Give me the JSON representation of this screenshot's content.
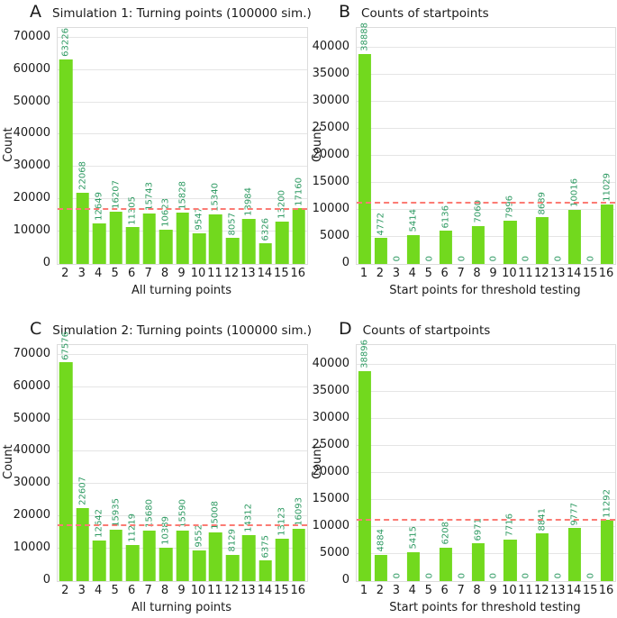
{
  "colors": {
    "bar": "#72d91e",
    "value_label": "#2e9a62",
    "dashed_line": "#fb7b74",
    "grid": "#e5e5e5",
    "spine": "#dcdcdc",
    "text": "#1a1a1a",
    "background": "#ffffff"
  },
  "chart_data": [
    {
      "type": "bar",
      "letter": "A",
      "title": "Simulation 1: Turning points (100000 sim.)",
      "xlabel": "All turning points",
      "ylabel": "Count",
      "categories": [
        "2",
        "3",
        "4",
        "5",
        "6",
        "7",
        "8",
        "9",
        "10",
        "11",
        "12",
        "13",
        "14",
        "15",
        "16"
      ],
      "values": [
        63226,
        22068,
        12649,
        16207,
        11305,
        15743,
        10623,
        15828,
        9547,
        15340,
        8057,
        13984,
        6326,
        13200,
        17160
      ],
      "yticks": [
        0,
        10000,
        20000,
        30000,
        40000,
        50000,
        60000,
        70000
      ],
      "ylim": [
        0,
        73000
      ],
      "dashed_line_y": 16750,
      "grid": true,
      "legend": null
    },
    {
      "type": "bar",
      "letter": "B",
      "title": "Counts of startpoints",
      "xlabel": "Start points for threshold testing",
      "ylabel": "Count",
      "categories": [
        "1",
        "2",
        "3",
        "4",
        "5",
        "6",
        "7",
        "8",
        "9",
        "10",
        "11",
        "12",
        "13",
        "14",
        "15",
        "16"
      ],
      "values": [
        38888,
        4772,
        0,
        5414,
        0,
        6136,
        0,
        7060,
        0,
        7996,
        0,
        8689,
        0,
        10016,
        0,
        11029
      ],
      "yticks": [
        0,
        5000,
        10000,
        15000,
        20000,
        25000,
        30000,
        35000,
        40000
      ],
      "ylim": [
        0,
        43750
      ],
      "dashed_line_y": 11111,
      "grid": true,
      "legend": null
    },
    {
      "type": "bar",
      "letter": "C",
      "title": "Simulation 2: Turning points (100000 sim.)",
      "xlabel": "All turning points",
      "ylabel": "Count",
      "categories": [
        "2",
        "3",
        "4",
        "5",
        "6",
        "7",
        "8",
        "9",
        "10",
        "11",
        "12",
        "13",
        "14",
        "15",
        "16"
      ],
      "values": [
        67576,
        22607,
        12642,
        15935,
        11219,
        15680,
        10389,
        15590,
        9552,
        15008,
        8129,
        14312,
        6375,
        13123,
        16093
      ],
      "yticks": [
        0,
        10000,
        20000,
        30000,
        40000,
        50000,
        60000,
        70000
      ],
      "ylim": [
        0,
        73000
      ],
      "dashed_line_y": 16950,
      "grid": true,
      "legend": null
    },
    {
      "type": "bar",
      "letter": "D",
      "title": "Counts of startpoints",
      "xlabel": "Start points for threshold testing",
      "ylabel": "Count",
      "categories": [
        "1",
        "2",
        "3",
        "4",
        "5",
        "6",
        "7",
        "8",
        "9",
        "10",
        "11",
        "12",
        "13",
        "14",
        "15",
        "16"
      ],
      "values": [
        38896,
        4884,
        0,
        5415,
        0,
        6208,
        0,
        6971,
        0,
        7716,
        0,
        8841,
        0,
        9777,
        0,
        11292
      ],
      "yticks": [
        0,
        5000,
        10000,
        15000,
        20000,
        25000,
        30000,
        35000,
        40000
      ],
      "ylim": [
        0,
        43750
      ],
      "dashed_line_y": 11111,
      "grid": true,
      "legend": null
    }
  ]
}
